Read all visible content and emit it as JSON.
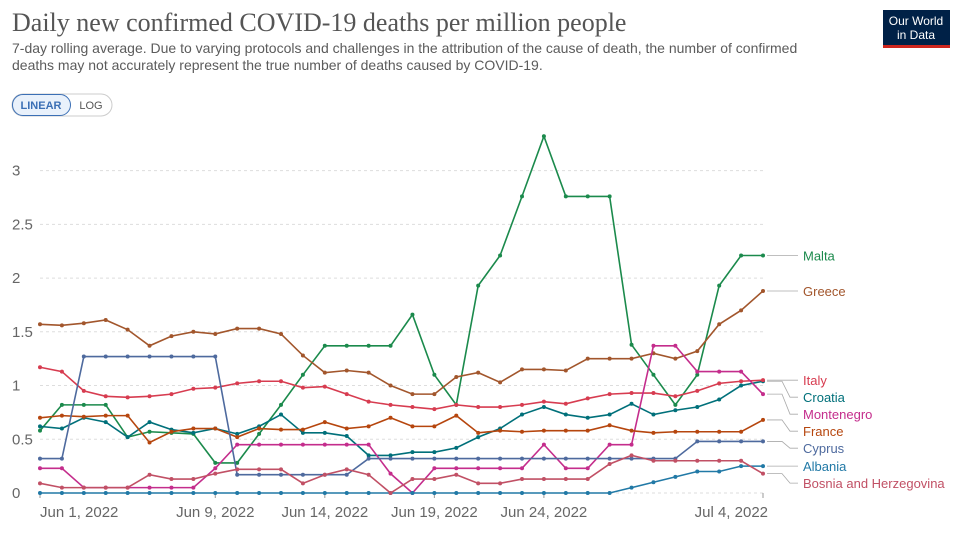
{
  "chart_data": {
    "type": "line",
    "title": "Daily new confirmed COVID-19 deaths per million people",
    "subtitle": [
      "7-day rolling average. Due to varying protocols and challenges in the attribution of the cause of death, the number of confirmed",
      "deaths may not accurately represent the true number of deaths caused by COVID-19."
    ],
    "buttons": [
      "LINEAR",
      "LOG"
    ],
    "logo": [
      "Our World",
      "in Data"
    ],
    "categories": [
      "Jun 1, 2022",
      null,
      null,
      null,
      null,
      null,
      null,
      null,
      "Jun 9, 2022",
      null,
      null,
      null,
      null,
      "Jun 14, 2022",
      null,
      null,
      null,
      null,
      "Jun 19, 2022",
      null,
      null,
      null,
      null,
      "Jun 24, 2022",
      null,
      null,
      null,
      null,
      null,
      null,
      null,
      null,
      null,
      "Jul 4, 2022"
    ],
    "ylim": [
      0,
      3.35
    ],
    "yticks": [
      0,
      0.5,
      1,
      1.5,
      2,
      2.5,
      3
    ],
    "grid": true,
    "series": [
      {
        "name": "Malta",
        "color": "#1b8a4c",
        "values": [
          0.58,
          0.82,
          0.82,
          0.82,
          0.52,
          0.57,
          0.56,
          0.55,
          0.28,
          0.28,
          0.55,
          0.82,
          1.1,
          1.37,
          1.37,
          1.37,
          1.37,
          1.66,
          1.1,
          0.82,
          1.93,
          2.21,
          2.76,
          3.32,
          2.76,
          2.76,
          2.76,
          1.38,
          1.1,
          0.82,
          1.1,
          1.93,
          2.21,
          2.21
        ]
      },
      {
        "name": "Greece",
        "color": "#a2562c",
        "values": [
          1.57,
          1.56,
          1.58,
          1.61,
          1.52,
          1.37,
          1.46,
          1.5,
          1.48,
          1.53,
          1.53,
          1.48,
          1.28,
          1.12,
          1.14,
          1.12,
          1.0,
          0.92,
          0.92,
          1.08,
          1.12,
          1.03,
          1.15,
          1.15,
          1.14,
          1.25,
          1.25,
          1.25,
          1.3,
          1.25,
          1.32,
          1.57,
          1.7,
          1.88
        ]
      },
      {
        "name": "Croatia",
        "color": "#00707a",
        "values": [
          0.62,
          0.6,
          0.7,
          0.66,
          0.52,
          0.66,
          0.59,
          0.56,
          0.6,
          0.55,
          0.62,
          0.73,
          0.56,
          0.56,
          0.53,
          0.35,
          0.35,
          0.38,
          0.38,
          0.42,
          0.52,
          0.6,
          0.73,
          0.8,
          0.73,
          0.7,
          0.73,
          0.83,
          0.73,
          0.77,
          0.8,
          0.87,
          1.0,
          1.04
        ]
      },
      {
        "name": "Italy",
        "color": "#d73c50",
        "values": [
          1.17,
          1.13,
          0.95,
          0.9,
          0.89,
          0.9,
          0.92,
          0.97,
          0.98,
          1.02,
          1.04,
          1.04,
          0.98,
          0.99,
          0.92,
          0.85,
          0.82,
          0.8,
          0.78,
          0.82,
          0.8,
          0.8,
          0.82,
          0.85,
          0.83,
          0.88,
          0.92,
          0.93,
          0.93,
          0.9,
          0.95,
          1.02,
          1.04,
          1.05
        ]
      },
      {
        "name": "Montenegro",
        "color": "#c42d8c",
        "values": [
          0.23,
          0.23,
          0.05,
          0.05,
          0.05,
          0.05,
          0.05,
          0.05,
          0.23,
          0.45,
          0.45,
          0.45,
          0.45,
          0.45,
          0.45,
          0.45,
          0.18,
          0.0,
          0.23,
          0.23,
          0.23,
          0.23,
          0.23,
          0.45,
          0.23,
          0.23,
          0.45,
          0.45,
          1.37,
          1.37,
          1.13,
          1.13,
          1.13,
          0.92
        ]
      },
      {
        "name": "France",
        "color": "#b6460e",
        "values": [
          0.7,
          0.72,
          0.71,
          0.72,
          0.72,
          0.47,
          0.57,
          0.6,
          0.6,
          0.52,
          0.6,
          0.59,
          0.59,
          0.66,
          0.6,
          0.62,
          0.7,
          0.62,
          0.62,
          0.72,
          0.56,
          0.58,
          0.57,
          0.58,
          0.58,
          0.58,
          0.63,
          0.58,
          0.56,
          0.57,
          0.57,
          0.57,
          0.57,
          0.68
        ]
      },
      {
        "name": "Cyprus",
        "color": "#4e6a9e",
        "values": [
          0.32,
          0.32,
          1.27,
          1.27,
          1.27,
          1.27,
          1.27,
          1.27,
          1.27,
          0.17,
          0.17,
          0.17,
          0.17,
          0.17,
          0.17,
          0.32,
          0.32,
          0.32,
          0.32,
          0.32,
          0.32,
          0.32,
          0.32,
          0.32,
          0.32,
          0.32,
          0.32,
          0.32,
          0.32,
          0.32,
          0.48,
          0.48,
          0.48,
          0.48
        ]
      },
      {
        "name": "Albania",
        "color": "#2179a6",
        "values": [
          0,
          0,
          0,
          0,
          0,
          0,
          0,
          0,
          0,
          0,
          0,
          0,
          0,
          0,
          0,
          0,
          0,
          0,
          0,
          0,
          0,
          0,
          0,
          0,
          0,
          0,
          0,
          0.05,
          0.1,
          0.15,
          0.2,
          0.2,
          0.25,
          0.25
        ]
      },
      {
        "name": "Bosnia and Herzegovina",
        "color": "#c15065",
        "values": [
          0.09,
          0.05,
          0.05,
          0.05,
          0.05,
          0.17,
          0.13,
          0.13,
          0.18,
          0.22,
          0.22,
          0.22,
          0.09,
          0.17,
          0.22,
          0.17,
          0.0,
          0.13,
          0.13,
          0.17,
          0.09,
          0.09,
          0.13,
          0.13,
          0.13,
          0.13,
          0.27,
          0.35,
          0.3,
          0.3,
          0.3,
          0.3,
          0.3,
          0.18
        ]
      }
    ]
  }
}
